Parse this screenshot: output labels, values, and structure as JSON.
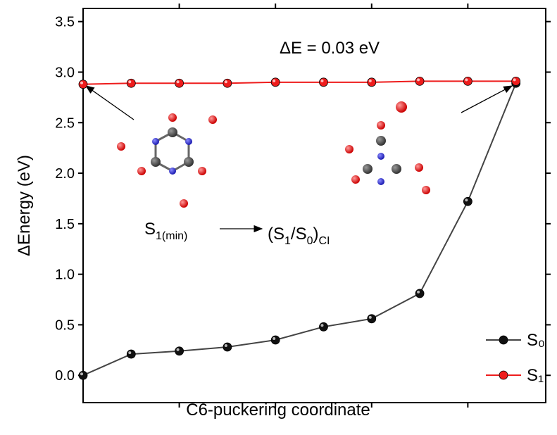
{
  "chart_data": {
    "type": "line",
    "y_label": "ΔEnergy (eV)",
    "x_label": "C6-puckering coordinate",
    "x": [
      0,
      1,
      2,
      3,
      4,
      5,
      6,
      7,
      8,
      9
    ],
    "xlim": [
      0,
      9.62
    ],
    "xticks": [
      2,
      4,
      6,
      8
    ],
    "ylim": [
      -0.27,
      3.63
    ],
    "yticks": [
      {
        "value": 0,
        "label": "0.0"
      },
      0.5,
      {
        "value": 1,
        "label": "1.0"
      },
      1.5,
      {
        "value": 2,
        "label": "2.0"
      },
      2.5,
      {
        "value": 3,
        "label": "3.0"
      },
      3.5
    ],
    "series": [
      {
        "name": "S₀",
        "color": "#444444",
        "marker_color": "#111111",
        "values": [
          0.0,
          0.21,
          0.24,
          0.28,
          0.35,
          0.48,
          0.56,
          0.81,
          1.72,
          2.89
        ]
      },
      {
        "name": "S₁",
        "color": "#ee1c1c",
        "marker_color": "#ee1c1c",
        "values": [
          2.88,
          2.89,
          2.89,
          2.89,
          2.9,
          2.9,
          2.9,
          2.91,
          2.91,
          2.91
        ]
      }
    ],
    "legend": "lower right",
    "annotations": [
      {
        "parts": [
          "ΔE = 0.03 eV"
        ]
      },
      {
        "parts": [
          "S",
          "1(min)"
        ]
      },
      {
        "parts": [
          "(S",
          "1",
          "/S",
          "0",
          ")",
          "CI"
        ]
      }
    ]
  }
}
